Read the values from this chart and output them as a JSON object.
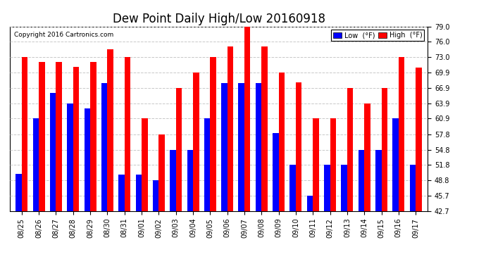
{
  "title": "Dew Point Daily High/Low 20160918",
  "copyright": "Copyright 2016 Cartronics.com",
  "dates": [
    "08/25",
    "08/26",
    "08/27",
    "08/28",
    "08/29",
    "08/30",
    "08/31",
    "09/01",
    "09/02",
    "09/03",
    "09/04",
    "09/05",
    "09/06",
    "09/07",
    "09/08",
    "09/09",
    "09/10",
    "09/11",
    "09/12",
    "09/13",
    "09/14",
    "09/15",
    "09/16",
    "09/17"
  ],
  "high": [
    73.0,
    72.0,
    72.0,
    71.0,
    72.0,
    74.5,
    73.0,
    60.9,
    57.8,
    66.9,
    69.9,
    73.0,
    75.0,
    79.0,
    75.0,
    69.9,
    68.0,
    60.9,
    60.9,
    66.9,
    63.9,
    66.9,
    73.0,
    70.9
  ],
  "low": [
    50.0,
    60.9,
    65.9,
    63.9,
    62.9,
    67.9,
    49.9,
    49.9,
    48.8,
    54.8,
    54.8,
    60.9,
    67.9,
    67.9,
    67.9,
    58.0,
    51.8,
    45.7,
    51.8,
    51.8,
    54.8,
    54.8,
    60.9,
    51.8
  ],
  "ylim_min": 42.7,
  "ylim_max": 79.0,
  "yticks": [
    42.7,
    45.7,
    48.8,
    51.8,
    54.8,
    57.8,
    60.9,
    63.9,
    66.9,
    69.9,
    73.0,
    76.0,
    79.0
  ],
  "ytick_labels": [
    "42.7",
    "45.7",
    "48.8",
    "51.8",
    "54.8",
    "57.8",
    "60.9",
    "63.9",
    "66.9",
    "69.9",
    "73.0",
    "76.0",
    "79.0"
  ],
  "bg_color": "#ffffff",
  "plot_bg_color": "#ffffff",
  "high_color": "#ff0000",
  "low_color": "#0000ff",
  "grid_color": "#c8c8c8",
  "title_fontsize": 12,
  "tick_fontsize": 7,
  "bar_width": 0.35,
  "legend_low_label": "Low  (°F)",
  "legend_high_label": "High  (°F)"
}
